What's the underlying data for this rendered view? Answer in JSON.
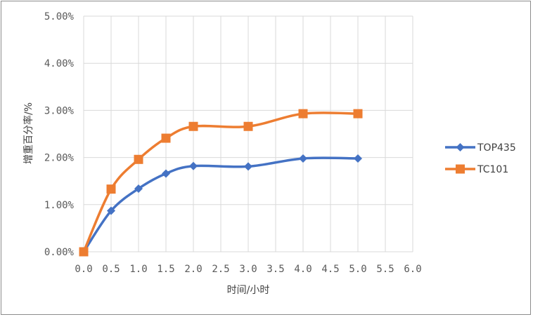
{
  "chart_data": {
    "type": "line",
    "title": "",
    "xlabel": "时间/小时",
    "ylabel": "增重百分率/%",
    "xlim": [
      0,
      6
    ],
    "ylim": [
      0,
      0.05
    ],
    "x_ticks": [
      "0.0",
      "0.5",
      "1.0",
      "1.5",
      "2.0",
      "2.5",
      "3.0",
      "3.5",
      "4.0",
      "4.5",
      "5.0",
      "5.5",
      "6.0"
    ],
    "y_ticks": [
      "0.00%",
      "1.00%",
      "2.00%",
      "3.00%",
      "4.00%",
      "5.00%"
    ],
    "grid": true,
    "smooth": true,
    "legend_position": "right",
    "series": [
      {
        "name": "TOP435",
        "color": "#4472C4",
        "marker": "diamond",
        "x": [
          0,
          0.5,
          1.0,
          1.5,
          2.0,
          3.0,
          4.0,
          5.0
        ],
        "y": [
          0.0,
          0.0087,
          0.0134,
          0.0166,
          0.0182,
          0.0181,
          0.0198,
          0.0198
        ]
      },
      {
        "name": "TC101",
        "color": "#ED7D31",
        "marker": "square",
        "x": [
          0,
          0.5,
          1.0,
          1.5,
          2.0,
          3.0,
          4.0,
          5.0
        ],
        "y": [
          0.0,
          0.0133,
          0.0196,
          0.0241,
          0.0266,
          0.0266,
          0.0293,
          0.0293
        ]
      }
    ]
  }
}
